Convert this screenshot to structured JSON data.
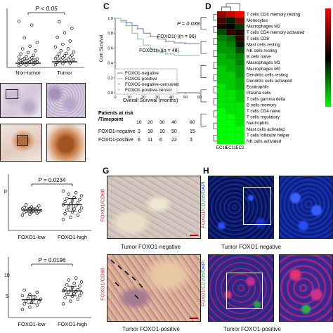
{
  "panel_letters": {
    "c": "C",
    "d": "D",
    "g": "G",
    "h": "H"
  },
  "panel_a": {
    "p_value": "P < 0.05",
    "categories": [
      "Non-tumor",
      "Tumor"
    ]
  },
  "panel_e": {
    "p_value": "P = 0.0234",
    "categories": [
      "FOXO1-low",
      "FOXO1-high"
    ]
  },
  "panel_f": {
    "p_value": "P = 0.0196",
    "categories": [
      "FOXO1-low",
      "FOXO1-high"
    ]
  },
  "panel_c": {
    "p_value": "P = 0.038",
    "ylabel": "Cum Survival",
    "xlabel": "Overall Survival (months)",
    "curve_label_negative": "FOXO1(-)(n = 96)",
    "curve_label_positive": "FOXO1(+)(n = 48)",
    "legend": [
      "FOXO1-negative",
      "FOXO1-positive",
      "FOXO1-negative-censored",
      "FOXO1-positive-censor"
    ],
    "risk_title_1": "Patients at risk",
    "risk_title_2": "/Timepoint",
    "timepoints": [
      "10",
      "20",
      "30",
      "40",
      "60"
    ],
    "risk_rows": [
      {
        "label": "FOXO1-negative",
        "values": [
          "3",
          "18",
          "10",
          "50",
          "15"
        ]
      },
      {
        "label": "FOXO1-positive",
        "values": [
          "6",
          "11",
          "6",
          "22",
          "3"
        ]
      }
    ]
  },
  "panel_d": {
    "rows": [
      "T cells CD4 memory resting",
      "Monocytes",
      "Macrophages M2",
      "T cells CD4 memory activated",
      "T cells CD8",
      "Mast cells resting",
      "NK cells resting",
      "B cells naive",
      "Macrophages M1",
      "Macrophages M0",
      "Dendritic cells resting",
      "Dendritic cells activated",
      "Eosinophils",
      "Plasma cells",
      "T cells gamma delta",
      "B cells memory",
      "T cells CD4 naive",
      "T cells regulatory",
      "Neutrophils",
      "Mast cells activated",
      "T cells follicular helper",
      "NK cells activated"
    ],
    "columns": [
      "EC10",
      "EC11",
      "EC2"
    ],
    "values": [
      [
        0.6,
        0.8,
        1.0
      ],
      [
        0.3,
        -0.1,
        0.5
      ],
      [
        0.1,
        0.0,
        -0.2
      ],
      [
        -0.3,
        0.2,
        0.1
      ],
      [
        -0.5,
        -0.4,
        0.2
      ],
      [
        -0.6,
        -0.5,
        -0.1
      ],
      [
        -0.6,
        -0.6,
        -0.3
      ],
      [
        -0.7,
        -0.6,
        -0.5
      ],
      [
        -0.7,
        -0.7,
        -0.5
      ],
      [
        -0.8,
        -0.7,
        -0.6
      ],
      [
        -0.8,
        -0.8,
        -0.6
      ],
      [
        -0.8,
        -0.8,
        -0.7
      ],
      [
        -0.9,
        -0.8,
        -0.7
      ],
      [
        -0.9,
        -0.9,
        -0.8
      ],
      [
        -0.9,
        -0.9,
        -0.8
      ],
      [
        -0.9,
        -0.9,
        -0.9
      ],
      [
        -1.0,
        -0.9,
        -0.9
      ],
      [
        -1.0,
        -1.0,
        -0.9
      ],
      [
        -1.0,
        -1.0,
        -0.9
      ],
      [
        -1.0,
        -1.0,
        -1.0
      ],
      [
        -1.0,
        -1.0,
        -1.0
      ],
      [
        -1.0,
        -1.0,
        -1.0
      ]
    ]
  },
  "panel_g": {
    "stain_label": "FOXO1/CD68",
    "caption_top": "Tumor FOXO1-negative",
    "caption_bottom": "Tumor FOXO1-positive"
  },
  "panel_h": {
    "stain_label_1": "FOXO1/",
    "stain_label_2": "CD206/",
    "stain_label_3": "DAPI",
    "caption_top": "Tumor FOXO1-negative",
    "caption_bottom": "Tumor FOXO1-positive"
  },
  "colors": {
    "heat_high": "#ff0000",
    "heat_mid": "#000000",
    "heat_low": "#00ff00",
    "red_stain": "#c8453a",
    "green_stain": "#27a847"
  },
  "chart_data": [
    {
      "type": "scatter",
      "title": "",
      "categories": [
        "Non-tumor",
        "Tumor"
      ],
      "ylim": [
        0,
        8
      ],
      "annotation": "P < 0.05",
      "series": [
        {
          "values": [
            0.2,
            0.3,
            0.4,
            0.4,
            0.5,
            0.6,
            0.6,
            0.7,
            0.7,
            0.8,
            0.8,
            0.9,
            0.9,
            1.0,
            1.0,
            1.0,
            1.1,
            1.1,
            1.2,
            1.2,
            1.3,
            1.4,
            1.5,
            1.6,
            1.8,
            2.0,
            2.2,
            2.5,
            2.8,
            3.2,
            3.8,
            4.5,
            6.5,
            7.1
          ]
        },
        {
          "values": [
            0.3,
            0.5,
            0.6,
            0.7,
            0.8,
            0.9,
            1.0,
            1.0,
            1.1,
            1.2,
            1.2,
            1.3,
            1.4,
            1.5,
            1.6,
            1.7,
            1.8,
            2.0,
            2.1,
            2.3,
            2.5,
            2.8,
            3.1,
            3.5,
            4.0,
            4.6,
            5.3,
            6.0,
            7.0
          ]
        }
      ]
    },
    {
      "type": "line",
      "title": "",
      "xlabel": "Overall Survival (months)",
      "ylabel": "Cum Survival",
      "xlim": [
        0,
        60
      ],
      "ylim": [
        0.0,
        1.0
      ],
      "x_ticks": [
        0,
        10,
        20,
        30,
        40,
        50,
        60
      ],
      "y_ticks": [
        0.0,
        0.2,
        0.4,
        0.6,
        0.8,
        1.0
      ],
      "series": [
        {
          "name": "FOXO1-negative",
          "x": [
            0,
            4,
            8,
            12,
            16,
            20,
            25,
            30,
            36,
            42,
            50,
            60
          ],
          "y": [
            1.0,
            0.97,
            0.94,
            0.9,
            0.86,
            0.8,
            0.76,
            0.72,
            0.69,
            0.67,
            0.66,
            0.66
          ]
        },
        {
          "name": "FOXO1-positive",
          "x": [
            0,
            4,
            8,
            12,
            16,
            20,
            25,
            30,
            36,
            42,
            50,
            60
          ],
          "y": [
            1.0,
            0.95,
            0.9,
            0.8,
            0.72,
            0.64,
            0.58,
            0.55,
            0.52,
            0.5,
            0.5,
            0.5
          ]
        }
      ]
    },
    {
      "type": "heatmap",
      "title": "",
      "rows": [
        "T cells CD4 memory resting",
        "Monocytes",
        "Macrophages M2",
        "T cells CD4 memory activated",
        "T cells CD8",
        "Mast cells resting",
        "NK cells resting",
        "B cells naive",
        "Macrophages M1",
        "Macrophages M0",
        "Dendritic cells resting",
        "Dendritic cells activated",
        "Eosinophils",
        "Plasma cells",
        "T cells gamma delta",
        "B cells memory",
        "T cells CD4 naive",
        "T cells regulatory",
        "Neutrophils",
        "Mast cells activated",
        "T cells follicular helper",
        "NK cells activated"
      ],
      "columns": [
        "EC10",
        "EC11",
        "EC2"
      ]
    },
    {
      "type": "scatter",
      "title": "",
      "categories": [
        "FOXO1-low",
        "FOXO1-high"
      ],
      "ylim": [
        3,
        11
      ],
      "annotation": "P = 0.0234",
      "series": [
        {
          "values": [
            5.6,
            5.8,
            6.0,
            6.1,
            6.2,
            6.3,
            6.4,
            6.5,
            6.5,
            6.6,
            6.7,
            6.8,
            6.9,
            7.0,
            7.1,
            7.2,
            7.4,
            7.6
          ]
        },
        {
          "values": [
            4.8,
            5.2,
            5.6,
            5.9,
            6.2,
            6.4,
            6.6,
            6.8,
            7.0,
            7.2,
            7.4,
            7.6,
            7.8,
            8.0,
            8.2,
            8.4,
            8.6,
            8.8,
            9.0,
            9.3,
            9.6,
            9.9,
            10.2
          ]
        }
      ]
    },
    {
      "type": "scatter",
      "title": "",
      "categories": [
        "FOXO1-low",
        "FOXO1-high"
      ],
      "ylim": [
        5,
        12
      ],
      "annotation": "P = 0.0196",
      "series": [
        {
          "values": [
            6.0,
            6.3,
            6.6,
            6.8,
            7.0,
            7.1,
            7.2,
            7.4,
            7.5,
            7.6,
            7.8,
            8.0,
            8.2,
            8.5,
            8.8
          ]
        },
        {
          "values": [
            6.8,
            7.2,
            7.5,
            7.7,
            7.9,
            8.0,
            8.2,
            8.3,
            8.4,
            8.5,
            8.6,
            8.7,
            8.8,
            8.9,
            9.0,
            9.2,
            9.4,
            9.6,
            9.8,
            10.0,
            10.3,
            10.6
          ]
        }
      ]
    }
  ]
}
